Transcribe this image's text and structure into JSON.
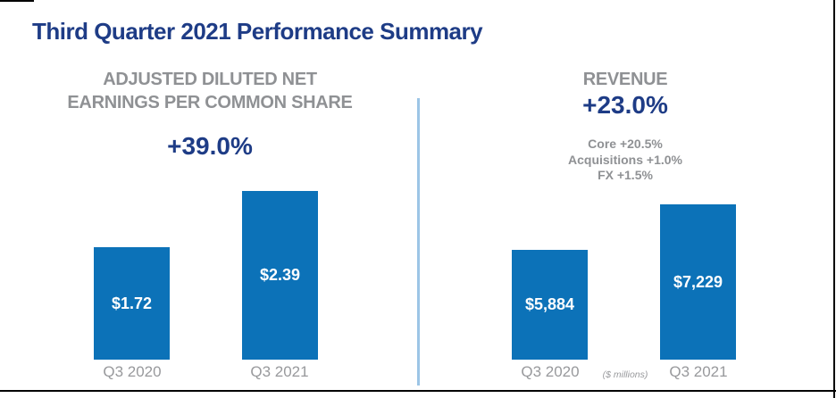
{
  "page": {
    "title": "Third Quarter 2021 Performance Summary"
  },
  "colors": {
    "title_navy": "#1e3c86",
    "bar_blue": "#0c72b8",
    "header_gray": "#8f9194",
    "axis_gray": "#98999c",
    "divider_blue": "#9cc5e6",
    "bar_label_white": "#ffffff",
    "border_black": "#000000"
  },
  "chart_data": [
    {
      "type": "bar",
      "title": "ADJUSTED DILUTED NET EARNINGS PER COMMON SHARE",
      "title_lines": [
        "ADJUSTED DILUTED NET",
        "EARNINGS PER COMMON SHARE"
      ],
      "change": "+39.0%",
      "categories": [
        "Q3 2020",
        "Q3 2021"
      ],
      "values": [
        1.72,
        2.39
      ],
      "value_labels": [
        "$1.72",
        "$2.39"
      ],
      "bar_color": "#0c72b8",
      "grid": false,
      "legend_position": "none"
    },
    {
      "type": "bar",
      "title": "REVENUE",
      "change": "+23.0%",
      "breakdown": [
        "Core +20.5%",
        "Acquisitions +1.0%",
        "FX +1.5%"
      ],
      "categories": [
        "Q3 2020",
        "Q3 2021"
      ],
      "values": [
        5884,
        7229
      ],
      "value_labels": [
        "$5,884",
        "$7,229"
      ],
      "unit_note": "($ millions)",
      "bar_color": "#0c72b8",
      "grid": false,
      "legend_position": "none"
    }
  ]
}
